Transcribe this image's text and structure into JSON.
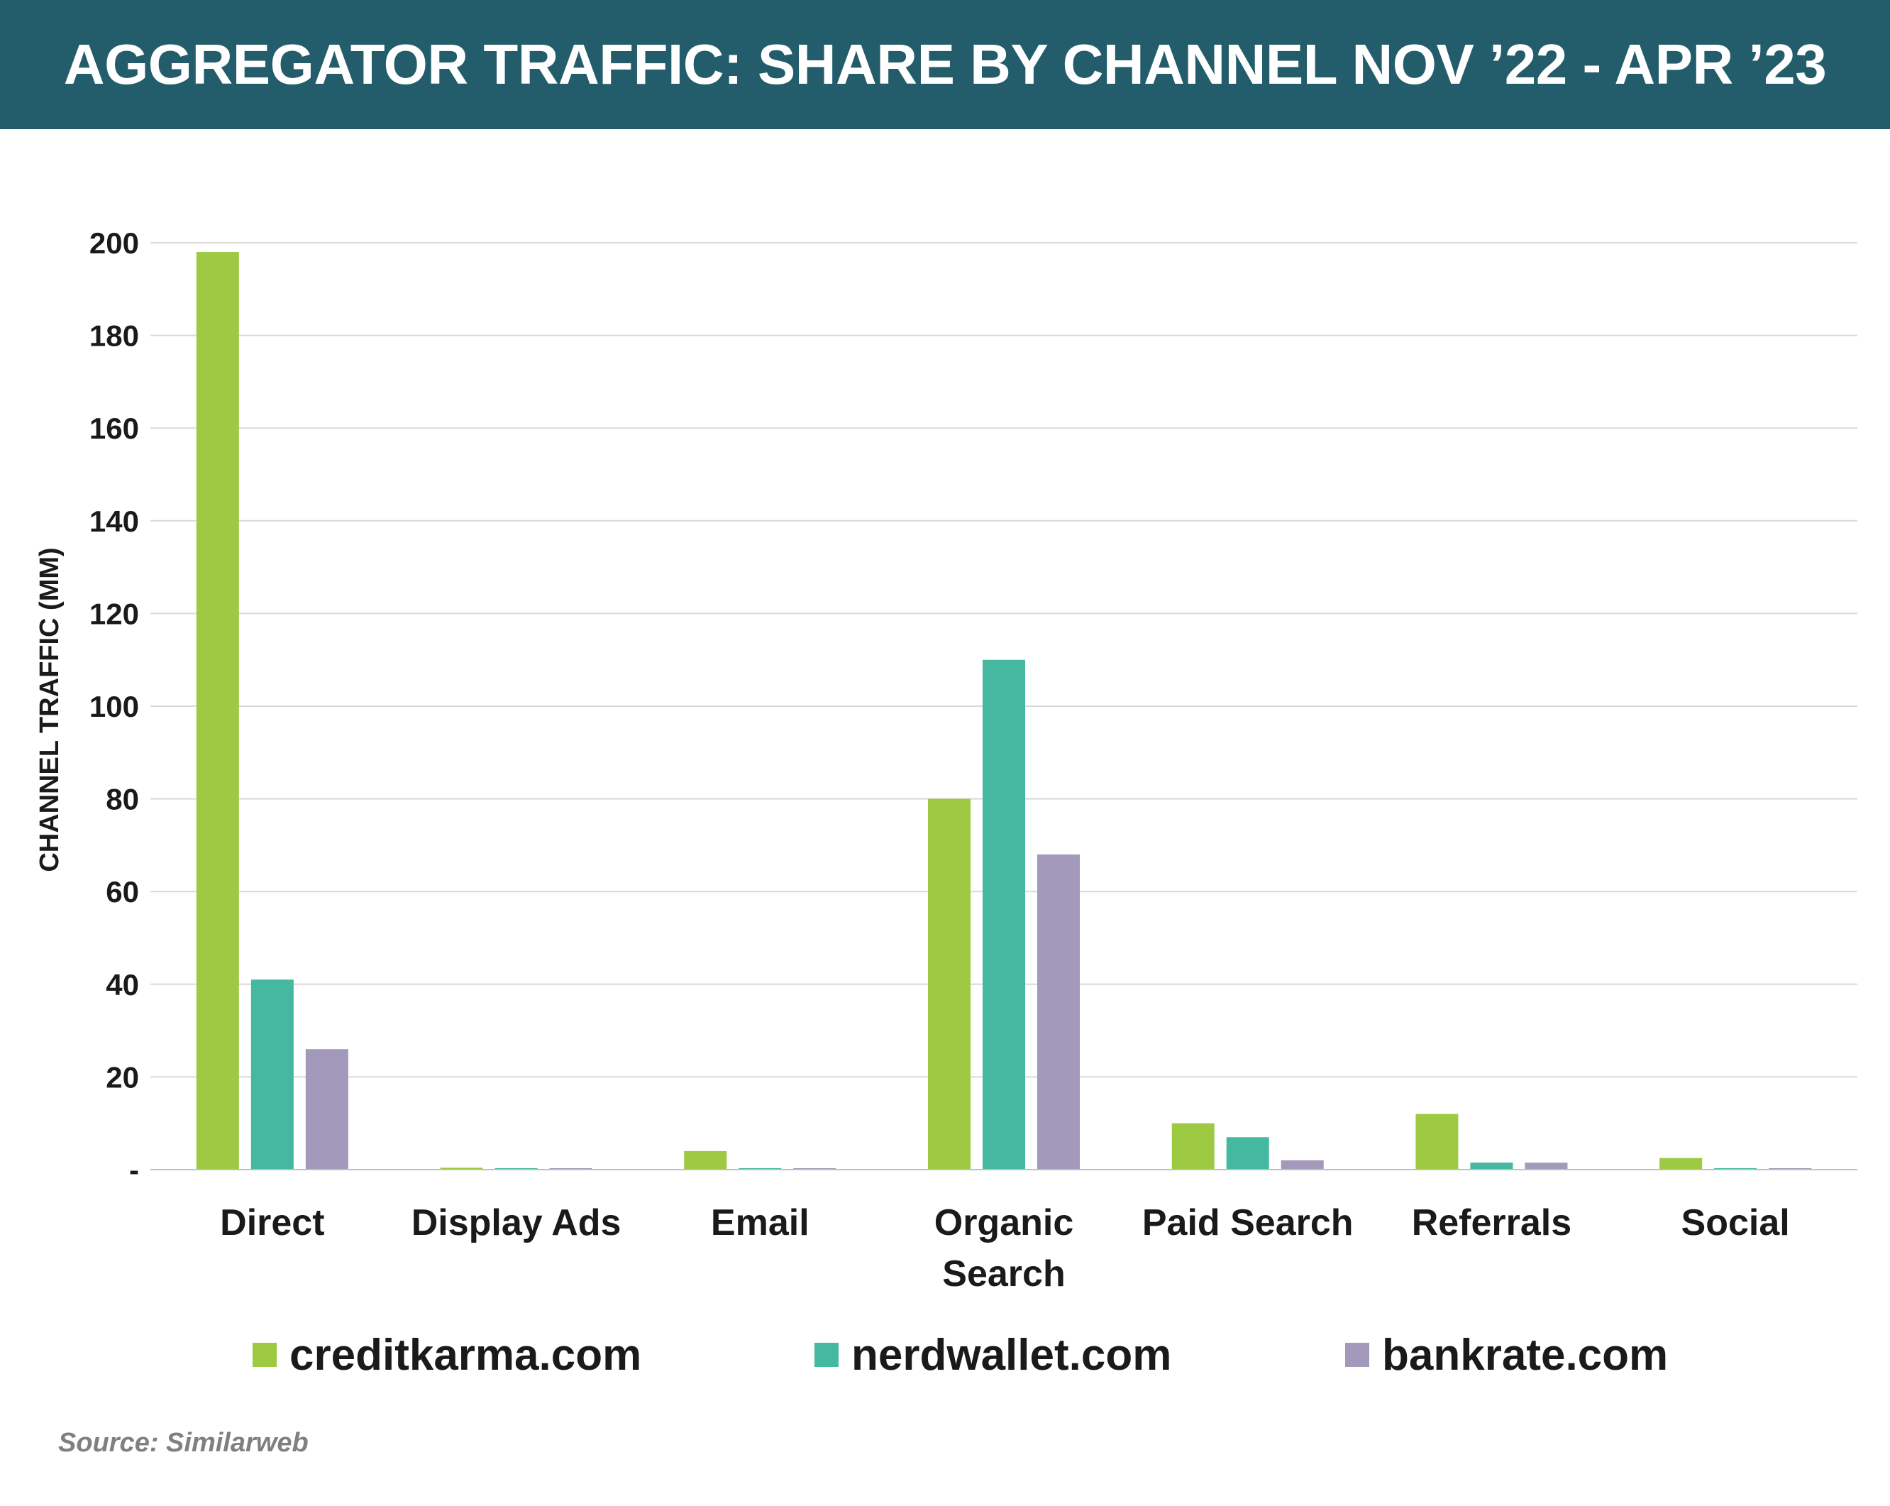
{
  "chart_data": {
    "type": "bar",
    "title": "AGGREGATOR TRAFFIC: SHARE BY CHANNEL NOV ’22 - APR ’23",
    "ylabel": "CHANNEL TRAFFIC (MM)",
    "xlabel": "",
    "ylim": [
      0,
      200
    ],
    "yticks": [
      0,
      20,
      40,
      60,
      80,
      100,
      120,
      140,
      160,
      180,
      200
    ],
    "ytick_labels": [
      "-",
      "20",
      "40",
      "60",
      "80",
      "100",
      "120",
      "140",
      "160",
      "180",
      "200"
    ],
    "grid": true,
    "legend_position": "bottom",
    "categories": [
      [
        "Direct"
      ],
      [
        "Display Ads"
      ],
      [
        "Email"
      ],
      [
        "Organic",
        "Search"
      ],
      [
        "Paid Search"
      ],
      [
        "Referrals"
      ],
      [
        "Social"
      ]
    ],
    "series": [
      {
        "name": "creditkarma.com",
        "color": "#9dc943",
        "values": [
          198,
          0.4,
          4,
          80,
          10,
          12,
          2.5
        ]
      },
      {
        "name": "nerdwallet.com",
        "color": "#45b9a0",
        "values": [
          41,
          0.3,
          0.3,
          110,
          7,
          1.5,
          0.3
        ]
      },
      {
        "name": "bankrate.com",
        "color": "#a399bb",
        "values": [
          26,
          0.3,
          0.3,
          68,
          2,
          1.5,
          0.3
        ]
      }
    ]
  },
  "source": "Source: Similarweb"
}
